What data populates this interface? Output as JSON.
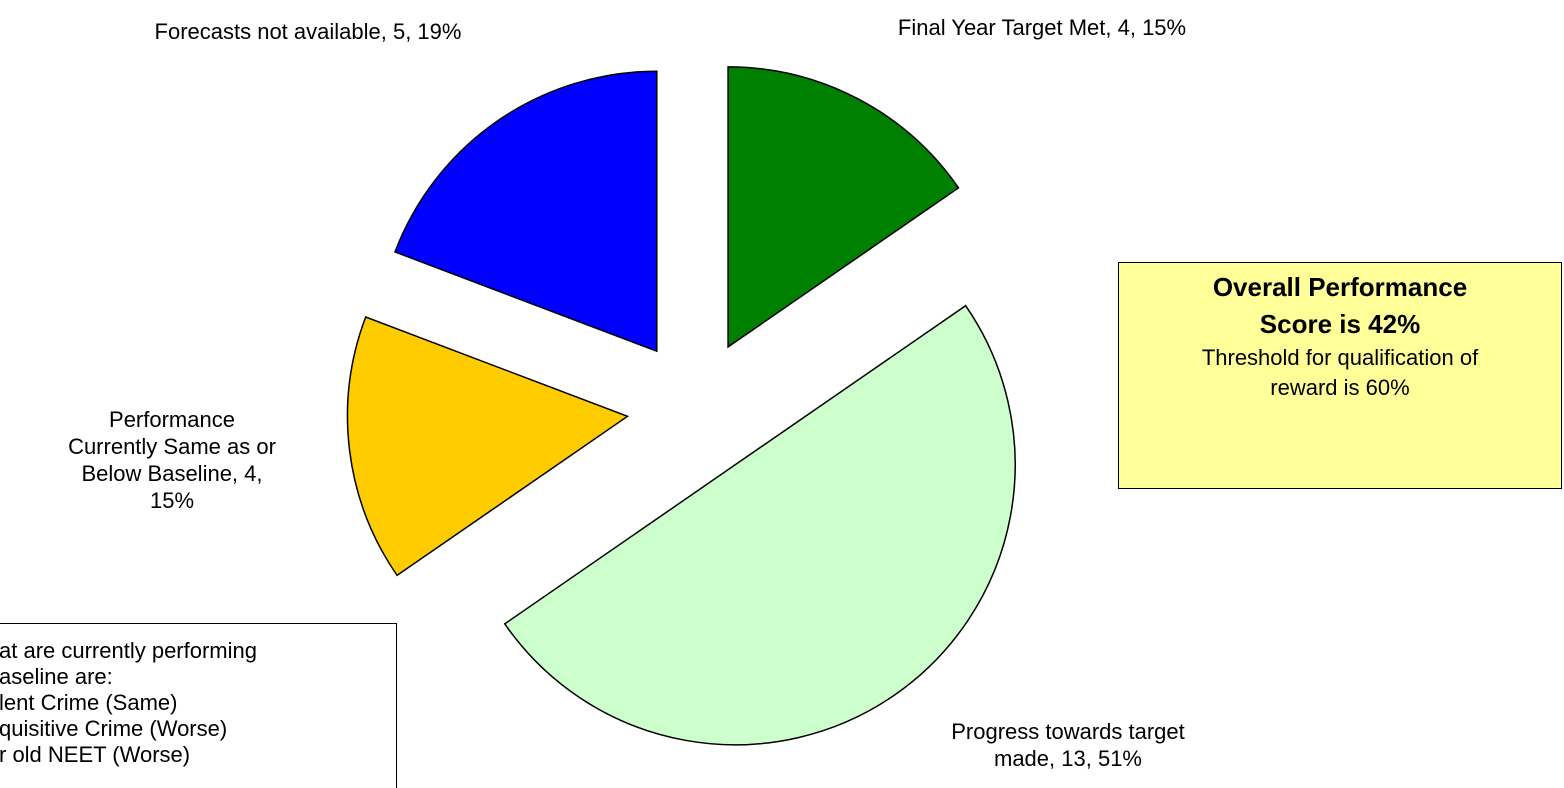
{
  "chart_data": {
    "type": "pie",
    "values": [
      4,
      13,
      4,
      5
    ],
    "value_labels": [
      "Final Year Target Met, 4, 15%",
      "Progress towards target made, 13, 51%",
      "Performance Currently Same as or Below Baseline, 4, 15%",
      "Forecasts not available, 5, 19%"
    ],
    "colors": [
      "#008000",
      "#ccffcc",
      "#ffcc00",
      "#0000ff"
    ],
    "exploded": true
  },
  "score_box": {
    "title": "Overall Performance Score is 42%",
    "text": "Threshold for qualification of reward is 60%"
  },
  "notes_box": {
    "lines": [
      "at are currently performing",
      "aseline are:",
      "lent Crime (Same)",
      "quisitive Crime (Worse)",
      "r old NEET (Worse)"
    ]
  }
}
